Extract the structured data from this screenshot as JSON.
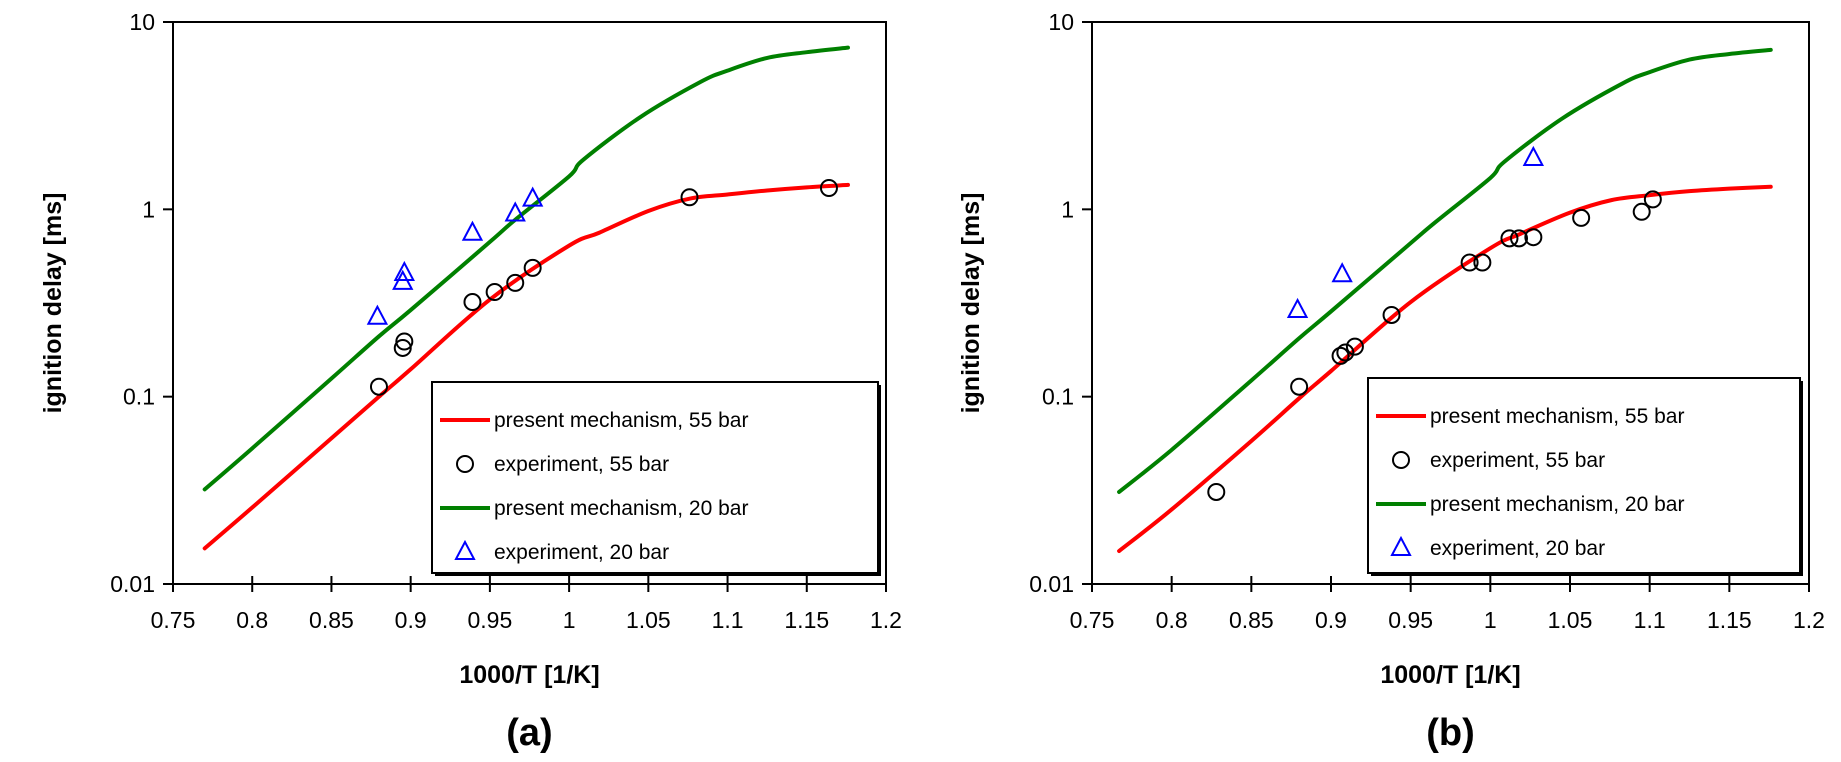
{
  "chart_data": [
    {
      "type": "line",
      "panel_label": "(a)",
      "xlabel": "1000/T [1/K]",
      "ylabel": "ignition delay [ms]",
      "xlim": [
        0.75,
        1.2
      ],
      "ylim": [
        0.01,
        10
      ],
      "yscale": "log",
      "grid": false,
      "legend_position": "bottom-right",
      "x_ticks": [
        "0.75",
        "0.8",
        "0.85",
        "0.9",
        "0.95",
        "1",
        "1.05",
        "1.1",
        "1.15",
        "1.2"
      ],
      "y_ticks": [
        "0.01",
        "0.1",
        "1",
        "10"
      ],
      "series": [
        {
          "name": "present mechanism, 55 bar",
          "kind": "line",
          "color": "#ff0000",
          "x": [
            0.77,
            0.8,
            0.85,
            0.88,
            0.9,
            0.95,
            1.0,
            1.019,
            1.05,
            1.076,
            1.1,
            1.125,
            1.15,
            1.176
          ],
          "y": [
            0.0155,
            0.0256,
            0.06,
            0.1,
            0.14,
            0.33,
            0.64,
            0.75,
            0.98,
            1.14,
            1.2,
            1.26,
            1.31,
            1.35
          ]
        },
        {
          "name": "experiment, 55 bar",
          "kind": "circle",
          "color": "#000000",
          "x": [
            0.88,
            0.895,
            0.896,
            0.939,
            0.953,
            0.966,
            0.977,
            1.076,
            1.164
          ],
          "y": [
            0.113,
            0.182,
            0.197,
            0.32,
            0.362,
            0.405,
            0.487,
            1.16,
            1.3
          ]
        },
        {
          "name": "present mechanism, 20 bar",
          "kind": "line",
          "color": "#008000",
          "x": [
            0.77,
            0.8,
            0.85,
            0.88,
            0.9,
            0.95,
            0.966,
            1.0,
            1.009,
            1.045,
            1.083,
            1.1,
            1.125,
            1.15,
            1.176
          ],
          "y": [
            0.032,
            0.053,
            0.125,
            0.21,
            0.29,
            0.67,
            0.88,
            1.5,
            1.84,
            3.11,
            4.79,
            5.5,
            6.43,
            6.9,
            7.3
          ]
        },
        {
          "name": "experiment, 20 bar",
          "kind": "triangle",
          "color": "#0000ff",
          "x": [
            0.879,
            0.895,
            0.896,
            0.939,
            0.966,
            0.977
          ],
          "y": [
            0.267,
            0.41,
            0.457,
            0.75,
            0.95,
            1.14
          ]
        }
      ]
    },
    {
      "type": "line",
      "panel_label": "(b)",
      "xlabel": "1000/T [1/K]",
      "ylabel": "ignition delay [ms]",
      "xlim": [
        0.75,
        1.2
      ],
      "ylim": [
        0.01,
        10
      ],
      "yscale": "log",
      "grid": false,
      "legend_position": "bottom-right",
      "x_ticks": [
        "0.75",
        "0.8",
        "0.85",
        "0.9",
        "0.95",
        "1",
        "1.05",
        "1.1",
        "1.15",
        "1.2"
      ],
      "y_ticks": [
        "0.01",
        "0.1",
        "1",
        "10"
      ],
      "series": [
        {
          "name": "present mechanism, 55 bar",
          "kind": "line",
          "color": "#ff0000",
          "x": [
            0.767,
            0.8,
            0.85,
            0.88,
            0.9,
            0.95,
            1.0,
            1.019,
            1.05,
            1.076,
            1.1,
            1.125,
            1.15,
            1.176
          ],
          "y": [
            0.015,
            0.025,
            0.058,
            0.098,
            0.137,
            0.32,
            0.62,
            0.74,
            0.96,
            1.12,
            1.19,
            1.25,
            1.29,
            1.32
          ]
        },
        {
          "name": "experiment, 55 bar",
          "kind": "circle",
          "color": "#000000",
          "x": [
            0.828,
            0.88,
            0.906,
            0.909,
            0.915,
            0.938,
            0.987,
            0.995,
            1.012,
            1.018,
            1.027,
            1.057,
            1.095,
            1.102
          ],
          "y": [
            0.031,
            0.113,
            0.165,
            0.172,
            0.185,
            0.273,
            0.52,
            0.52,
            0.7,
            0.7,
            0.71,
            0.9,
            0.97,
            1.13
          ]
        },
        {
          "name": "present mechanism, 20 bar",
          "kind": "line",
          "color": "#008000",
          "x": [
            0.767,
            0.8,
            0.85,
            0.88,
            0.9,
            0.95,
            0.966,
            1.0,
            1.009,
            1.045,
            1.083,
            1.1,
            1.125,
            1.15,
            1.176
          ],
          "y": [
            0.031,
            0.052,
            0.122,
            0.205,
            0.285,
            0.66,
            0.86,
            1.47,
            1.8,
            3.05,
            4.7,
            5.4,
            6.3,
            6.75,
            7.1
          ]
        },
        {
          "name": "experiment, 20 bar",
          "kind": "triangle",
          "color": "#0000ff",
          "x": [
            0.879,
            0.907,
            1.027
          ],
          "y": [
            0.29,
            0.45,
            1.88
          ]
        }
      ]
    }
  ]
}
